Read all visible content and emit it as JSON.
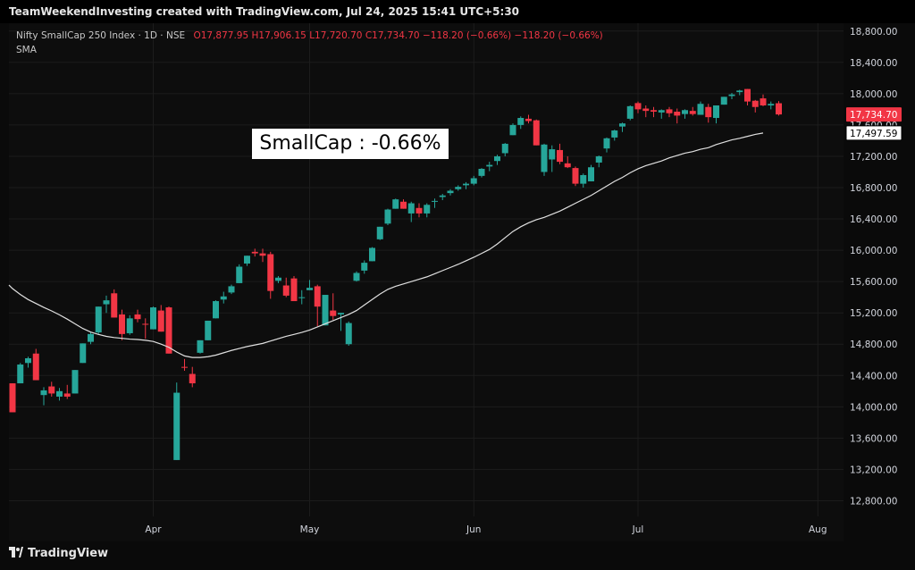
{
  "watermark": "TeamWeekendInvesting created with TradingView.com, Jul 24, 2025 15:41 UTC+5:30",
  "header": {
    "symbol": "Nifty SmallCap 250 Index · 1D · NSE",
    "open": "O17,877.95",
    "high": "H17,906.15",
    "low": "L17,720.70",
    "close": "C17,734.70",
    "change": "−118.20 (−0.66%)",
    "change2": "−118.20 (−0.66%)",
    "indicator": "SMA"
  },
  "annotation": "SmallCap : -0.66%",
  "footer": "TradingView",
  "colors": {
    "up": "#26a69a",
    "down": "#f23645",
    "sma": "#e0e0e0",
    "grid": "#1c1c1c",
    "axis_text": "#d1d4dc"
  },
  "chart_data": {
    "type": "candlestick",
    "title": "Nifty SmallCap 250 Index · 1D · NSE",
    "ylim": [
      12600,
      18900
    ],
    "yticks": [
      12800,
      13200,
      13600,
      14000,
      14400,
      14800,
      15200,
      15600,
      16000,
      16400,
      16800,
      17200,
      17600,
      18000,
      18400,
      18800
    ],
    "ytick_labels": [
      "12,800.00",
      "13,200.00",
      "13,600.00",
      "14,000.00",
      "14,400.00",
      "14,800.00",
      "15,200.00",
      "15,600.00",
      "16,000.00",
      "16,400.00",
      "16,800.00",
      "17,200.00",
      "17,600.00",
      "18,000.00",
      "18,400.00",
      "18,800.00"
    ],
    "month_labels": [
      {
        "label": "Apr",
        "index": 18
      },
      {
        "label": "May",
        "index": 38
      },
      {
        "label": "Jun",
        "index": 59
      },
      {
        "label": "Jul",
        "index": 80
      },
      {
        "label": "Aug",
        "index": 103
      }
    ],
    "price_labels": [
      {
        "label": "17,734.70",
        "value": 17734.7,
        "color": "#f23645"
      },
      {
        "label": "17,497.59",
        "value": 17497.59,
        "color": "#ffffff"
      }
    ],
    "candles": [
      [
        14300,
        14300,
        13930,
        13930
      ],
      [
        14300,
        14560,
        14300,
        14540
      ],
      [
        14560,
        14640,
        14500,
        14620
      ],
      [
        14680,
        14740,
        14340,
        14340
      ],
      [
        14150,
        14250,
        14020,
        14210
      ],
      [
        14260,
        14320,
        14130,
        14170
      ],
      [
        14130,
        14240,
        14080,
        14200
      ],
      [
        14170,
        14280,
        14100,
        14130
      ],
      [
        14170,
        14470,
        14170,
        14470
      ],
      [
        14560,
        14810,
        14560,
        14810
      ],
      [
        14830,
        14950,
        14800,
        14930
      ],
      [
        14950,
        15280,
        14930,
        15280
      ],
      [
        15310,
        15420,
        15200,
        15360
      ],
      [
        15450,
        15500,
        15140,
        15140
      ],
      [
        15180,
        15240,
        14850,
        14930
      ],
      [
        14940,
        15170,
        14920,
        15130
      ],
      [
        15180,
        15240,
        15080,
        15120
      ],
      [
        15060,
        15130,
        14870,
        15050
      ],
      [
        14990,
        15280,
        14990,
        15270
      ],
      [
        15230,
        15300,
        14960,
        14960
      ],
      [
        15270,
        15280,
        14680,
        14680
      ],
      [
        13320,
        14310,
        13320,
        14180
      ],
      [
        14510,
        14610,
        14460,
        14500
      ],
      [
        14420,
        14510,
        14250,
        14300
      ],
      [
        14690,
        14850,
        14680,
        14850
      ],
      [
        14850,
        15100,
        14850,
        15100
      ],
      [
        15130,
        15360,
        15130,
        15350
      ],
      [
        15370,
        15470,
        15320,
        15410
      ],
      [
        15460,
        15560,
        15440,
        15540
      ],
      [
        15580,
        15820,
        15580,
        15790
      ],
      [
        15830,
        15930,
        15800,
        15930
      ],
      [
        15980,
        16020,
        15920,
        15960
      ],
      [
        15960,
        16020,
        15850,
        15930
      ],
      [
        15950,
        15980,
        15380,
        15480
      ],
      [
        15610,
        15670,
        15580,
        15650
      ],
      [
        15550,
        15650,
        15400,
        15420
      ],
      [
        15640,
        15670,
        15350,
        15350
      ],
      [
        15400,
        15490,
        15310,
        15400
      ],
      [
        15490,
        15620,
        15490,
        15520
      ],
      [
        15540,
        15560,
        15030,
        15280
      ],
      [
        15040,
        15430,
        15040,
        15430
      ],
      [
        15230,
        15450,
        15110,
        15160
      ],
      [
        15180,
        15200,
        14970,
        15200
      ],
      [
        14800,
        15090,
        14780,
        15070
      ],
      [
        15610,
        15730,
        15600,
        15710
      ],
      [
        15740,
        15870,
        15700,
        15840
      ],
      [
        15860,
        16040,
        15860,
        16030
      ],
      [
        16140,
        16300,
        16130,
        16300
      ],
      [
        16340,
        16530,
        16320,
        16520
      ],
      [
        16530,
        16660,
        16530,
        16650
      ],
      [
        16620,
        16650,
        16530,
        16530
      ],
      [
        16470,
        16620,
        16360,
        16600
      ],
      [
        16540,
        16600,
        16420,
        16470
      ],
      [
        16470,
        16600,
        16420,
        16580
      ],
      [
        16620,
        16660,
        16540,
        16630
      ],
      [
        16680,
        16720,
        16640,
        16700
      ],
      [
        16730,
        16780,
        16700,
        16760
      ],
      [
        16780,
        16830,
        16760,
        16810
      ],
      [
        16830,
        16870,
        16780,
        16850
      ],
      [
        16850,
        16950,
        16830,
        16920
      ],
      [
        16950,
        17050,
        16930,
        17040
      ],
      [
        17070,
        17130,
        17010,
        17090
      ],
      [
        17140,
        17220,
        17090,
        17200
      ],
      [
        17240,
        17370,
        17200,
        17360
      ],
      [
        17470,
        17620,
        17470,
        17600
      ],
      [
        17600,
        17710,
        17550,
        17690
      ],
      [
        17680,
        17730,
        17620,
        17650
      ],
      [
        17660,
        17670,
        17340,
        17340
      ],
      [
        17000,
        17360,
        16950,
        17350
      ],
      [
        17160,
        17340,
        17000,
        17290
      ],
      [
        17280,
        17360,
        17100,
        17130
      ],
      [
        17110,
        17200,
        17050,
        17060
      ],
      [
        17050,
        17070,
        16820,
        16850
      ],
      [
        16850,
        16980,
        16800,
        16960
      ],
      [
        16880,
        17090,
        16880,
        17060
      ],
      [
        17120,
        17210,
        17060,
        17200
      ],
      [
        17300,
        17440,
        17250,
        17430
      ],
      [
        17440,
        17540,
        17400,
        17530
      ],
      [
        17580,
        17630,
        17510,
        17620
      ],
      [
        17680,
        17850,
        17660,
        17840
      ],
      [
        17880,
        17900,
        17750,
        17800
      ],
      [
        17810,
        17850,
        17700,
        17780
      ],
      [
        17790,
        17830,
        17700,
        17770
      ],
      [
        17760,
        17800,
        17680,
        17790
      ],
      [
        17800,
        17830,
        17700,
        17750
      ],
      [
        17770,
        17810,
        17620,
        17720
      ],
      [
        17740,
        17800,
        17680,
        17790
      ],
      [
        17780,
        17830,
        17720,
        17740
      ],
      [
        17730,
        17900,
        17730,
        17870
      ],
      [
        17830,
        17870,
        17630,
        17700
      ],
      [
        17690,
        17850,
        17620,
        17850
      ],
      [
        17860,
        17960,
        17860,
        17960
      ],
      [
        17970,
        18010,
        17930,
        17990
      ],
      [
        18020,
        18050,
        17980,
        18040
      ],
      [
        18060,
        18060,
        17850,
        17900
      ],
      [
        17910,
        17920,
        17760,
        17830
      ],
      [
        17940,
        17990,
        17840,
        17850
      ],
      [
        17850,
        17900,
        17800,
        17870
      ],
      [
        17877.95,
        17906.15,
        17720.7,
        17734.7
      ]
    ],
    "sma": [
      15510,
      15435,
      15370,
      15320,
      15270,
      15225,
      15175,
      15120,
      15060,
      15000,
      14955,
      14925,
      14900,
      14885,
      14875,
      14865,
      14860,
      14850,
      14835,
      14800,
      14760,
      14700,
      14650,
      14630,
      14630,
      14640,
      14660,
      14690,
      14720,
      14745,
      14770,
      14790,
      14810,
      14840,
      14870,
      14900,
      14925,
      14950,
      14980,
      15020,
      15060,
      15100,
      15140,
      15180,
      15230,
      15300,
      15370,
      15440,
      15500,
      15540,
      15570,
      15600,
      15630,
      15660,
      15700,
      15740,
      15780,
      15820,
      15865,
      15910,
      15960,
      16010,
      16080,
      16160,
      16240,
      16300,
      16350,
      16390,
      16420,
      16460,
      16500,
      16550,
      16600,
      16650,
      16700,
      16760,
      16820,
      16880,
      16930,
      16990,
      17040,
      17080,
      17110,
      17140,
      17180,
      17210,
      17240,
      17260,
      17290,
      17310,
      17350,
      17380,
      17410,
      17430,
      17455,
      17480,
      17497.59
    ]
  }
}
